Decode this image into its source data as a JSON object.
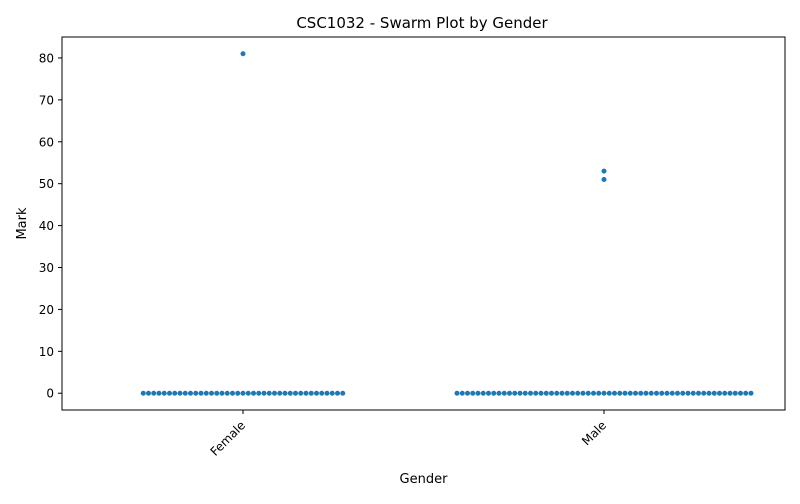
{
  "chart_data": {
    "type": "scatter",
    "subtype": "swarm",
    "title": "CSC1032 - Swarm Plot by Gender",
    "xlabel": "Gender",
    "ylabel": "Mark",
    "categories": [
      "Female",
      "Male"
    ],
    "ylim": [
      -4,
      85
    ],
    "yticks": [
      0,
      10,
      20,
      30,
      40,
      50,
      60,
      70,
      80
    ],
    "grid": false,
    "legend": "none",
    "point_color": "#1f77b4",
    "series": [
      {
        "category": "Female",
        "zero_count": 39,
        "nonzero_values": [
          81
        ]
      },
      {
        "category": "Male",
        "zero_count": 57,
        "nonzero_values": [
          53,
          51
        ]
      }
    ]
  }
}
